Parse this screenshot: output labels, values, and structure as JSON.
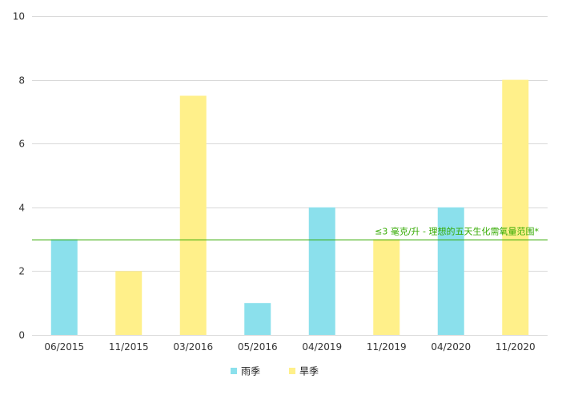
{
  "chart_data": {
    "type": "bar",
    "categories": [
      "06/2015",
      "11/2015",
      "03/2016",
      "05/2016",
      "04/2019",
      "11/2019",
      "04/2020",
      "11/2020"
    ],
    "values": [
      3,
      2,
      7.5,
      1,
      4,
      3,
      4,
      8
    ],
    "bar_series": [
      "雨季",
      "旱季",
      "旱季",
      "雨季",
      "雨季",
      "旱季",
      "雨季",
      "旱季"
    ],
    "series": [
      {
        "name": "雨季",
        "color": "#8be0ec"
      },
      {
        "name": "旱季",
        "color": "#fff08a"
      }
    ],
    "title": "",
    "xlabel": "",
    "ylabel": "",
    "ylim": [
      0,
      10
    ],
    "yticks": [
      0,
      2,
      4,
      6,
      8,
      10
    ],
    "grid": true,
    "legend_position": "bottom-center",
    "reference_line": {
      "value": 3,
      "label": "≤3 毫克/升 - 理想的五天生化需氧量范围*",
      "color": "#33aa00"
    }
  }
}
